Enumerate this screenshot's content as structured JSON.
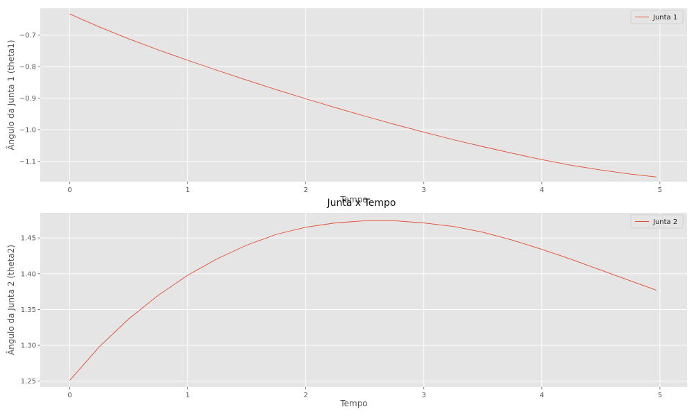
{
  "chart_data": [
    {
      "type": "line",
      "title": "",
      "xlabel": "Tempo",
      "ylabel": "Ângulo da Junta 1 (theta1)",
      "xlim": [
        -0.25,
        5.23
      ],
      "ylim": [
        -1.165,
        -0.615
      ],
      "xticks": [
        0,
        1,
        2,
        3,
        4,
        5
      ],
      "xtick_labels": [
        "0",
        "1",
        "2",
        "3",
        "4",
        "5"
      ],
      "yticks": [
        -0.7,
        -0.8,
        -0.9,
        -1.0,
        -1.1
      ],
      "ytick_labels": [
        "−0.7",
        "−0.8",
        "−0.9",
        "−1.0",
        "−1.1"
      ],
      "grid": true,
      "legend_position": "top-right",
      "series": [
        {
          "name": "Junta 1",
          "color": "#e24a33",
          "x": [
            0,
            0.25,
            0.5,
            0.75,
            1.0,
            1.25,
            1.5,
            1.75,
            2.0,
            2.25,
            2.5,
            2.75,
            3.0,
            3.25,
            3.5,
            3.75,
            4.0,
            4.25,
            4.5,
            4.75,
            4.97
          ],
          "y": [
            -0.633,
            -0.674,
            -0.712,
            -0.747,
            -0.78,
            -0.812,
            -0.843,
            -0.873,
            -0.902,
            -0.93,
            -0.957,
            -0.983,
            -1.008,
            -1.032,
            -1.054,
            -1.075,
            -1.095,
            -1.113,
            -1.128,
            -1.141,
            -1.15
          ]
        }
      ]
    },
    {
      "type": "line",
      "title": "Junta x Tempo",
      "xlabel": "Tempo",
      "ylabel": "Ângulo da Junta 2 (theta2)",
      "xlim": [
        -0.25,
        5.23
      ],
      "ylim": [
        1.242,
        1.485
      ],
      "xticks": [
        0,
        1,
        2,
        3,
        4,
        5
      ],
      "xtick_labels": [
        "0",
        "1",
        "2",
        "3",
        "4",
        "5"
      ],
      "yticks": [
        1.25,
        1.3,
        1.35,
        1.4,
        1.45
      ],
      "ytick_labels": [
        "1.25",
        "1.30",
        "1.35",
        "1.40",
        "1.45"
      ],
      "grid": true,
      "legend_position": "top-right",
      "series": [
        {
          "name": "Junta 2",
          "color": "#e24a33",
          "x": [
            0,
            0.25,
            0.5,
            0.75,
            1.0,
            1.25,
            1.5,
            1.75,
            2.0,
            2.25,
            2.5,
            2.6,
            2.75,
            3.0,
            3.25,
            3.5,
            3.75,
            4.0,
            4.25,
            4.5,
            4.75,
            4.97
          ],
          "y": [
            1.251,
            1.298,
            1.337,
            1.37,
            1.398,
            1.421,
            1.44,
            1.455,
            1.465,
            1.471,
            1.474,
            1.474,
            1.474,
            1.471,
            1.466,
            1.458,
            1.447,
            1.434,
            1.42,
            1.405,
            1.39,
            1.377
          ]
        }
      ]
    }
  ]
}
